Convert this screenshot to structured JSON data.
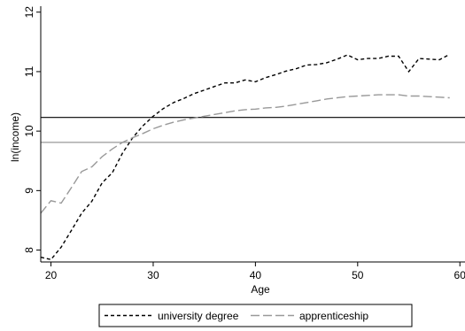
{
  "chart_data": {
    "type": "line",
    "title": "",
    "xlabel": "Age",
    "ylabel": "ln(income)",
    "xlim": [
      19,
      60.5
    ],
    "ylim": [
      7.8,
      12.1
    ],
    "x_ticks": [
      20,
      30,
      40,
      50,
      60
    ],
    "x_tick_labels": [
      "20",
      "30",
      "40",
      "50",
      "60"
    ],
    "y_ticks": [
      8,
      9,
      10,
      11,
      12
    ],
    "y_tick_labels": [
      "8",
      "9",
      "10",
      "11",
      "12"
    ],
    "grid": false,
    "legend_position": "bottom",
    "series": [
      {
        "name": "university degree",
        "color": "#000000",
        "dash": "short-dash",
        "x": [
          19,
          20,
          21,
          22,
          23,
          24,
          25,
          26,
          27,
          28,
          29,
          30,
          31,
          32,
          33,
          34,
          35,
          36,
          37,
          38,
          39,
          40,
          41,
          42,
          43,
          44,
          45,
          46,
          47,
          48,
          49,
          50,
          51,
          52,
          53,
          54,
          55,
          56,
          57,
          58,
          59
        ],
        "y": [
          7.88,
          7.84,
          8.05,
          8.33,
          8.62,
          8.82,
          9.13,
          9.3,
          9.63,
          9.89,
          10.09,
          10.25,
          10.38,
          10.48,
          10.55,
          10.63,
          10.69,
          10.75,
          10.81,
          10.81,
          10.86,
          10.83,
          10.9,
          10.95,
          11.01,
          11.05,
          11.11,
          11.12,
          11.15,
          11.21,
          11.28,
          11.2,
          11.22,
          11.22,
          11.26,
          11.26,
          11.0,
          11.22,
          11.21,
          11.2,
          11.29
        ]
      },
      {
        "name": "apprenticeship",
        "color": "#999999",
        "dash": "long-dash",
        "x": [
          19,
          20,
          21,
          22,
          23,
          24,
          25,
          26,
          27,
          28,
          29,
          30,
          31,
          32,
          33,
          34,
          35,
          36,
          37,
          38,
          39,
          40,
          41,
          42,
          43,
          44,
          45,
          46,
          47,
          48,
          49,
          50,
          51,
          52,
          53,
          54,
          55,
          56,
          57,
          58,
          59
        ],
        "y": [
          8.62,
          8.83,
          8.79,
          9.05,
          9.32,
          9.4,
          9.57,
          9.7,
          9.81,
          9.89,
          9.96,
          10.04,
          10.1,
          10.15,
          10.19,
          10.22,
          10.25,
          10.28,
          10.31,
          10.34,
          10.36,
          10.37,
          10.39,
          10.4,
          10.42,
          10.45,
          10.48,
          10.51,
          10.54,
          10.56,
          10.58,
          10.59,
          10.6,
          10.61,
          10.61,
          10.61,
          10.59,
          10.59,
          10.58,
          10.57,
          10.56
        ]
      }
    ],
    "reference_lines": [
      {
        "axis": "y",
        "value": 10.23,
        "color": "#000000"
      },
      {
        "axis": "y",
        "value": 9.81,
        "color": "#999999"
      }
    ]
  }
}
